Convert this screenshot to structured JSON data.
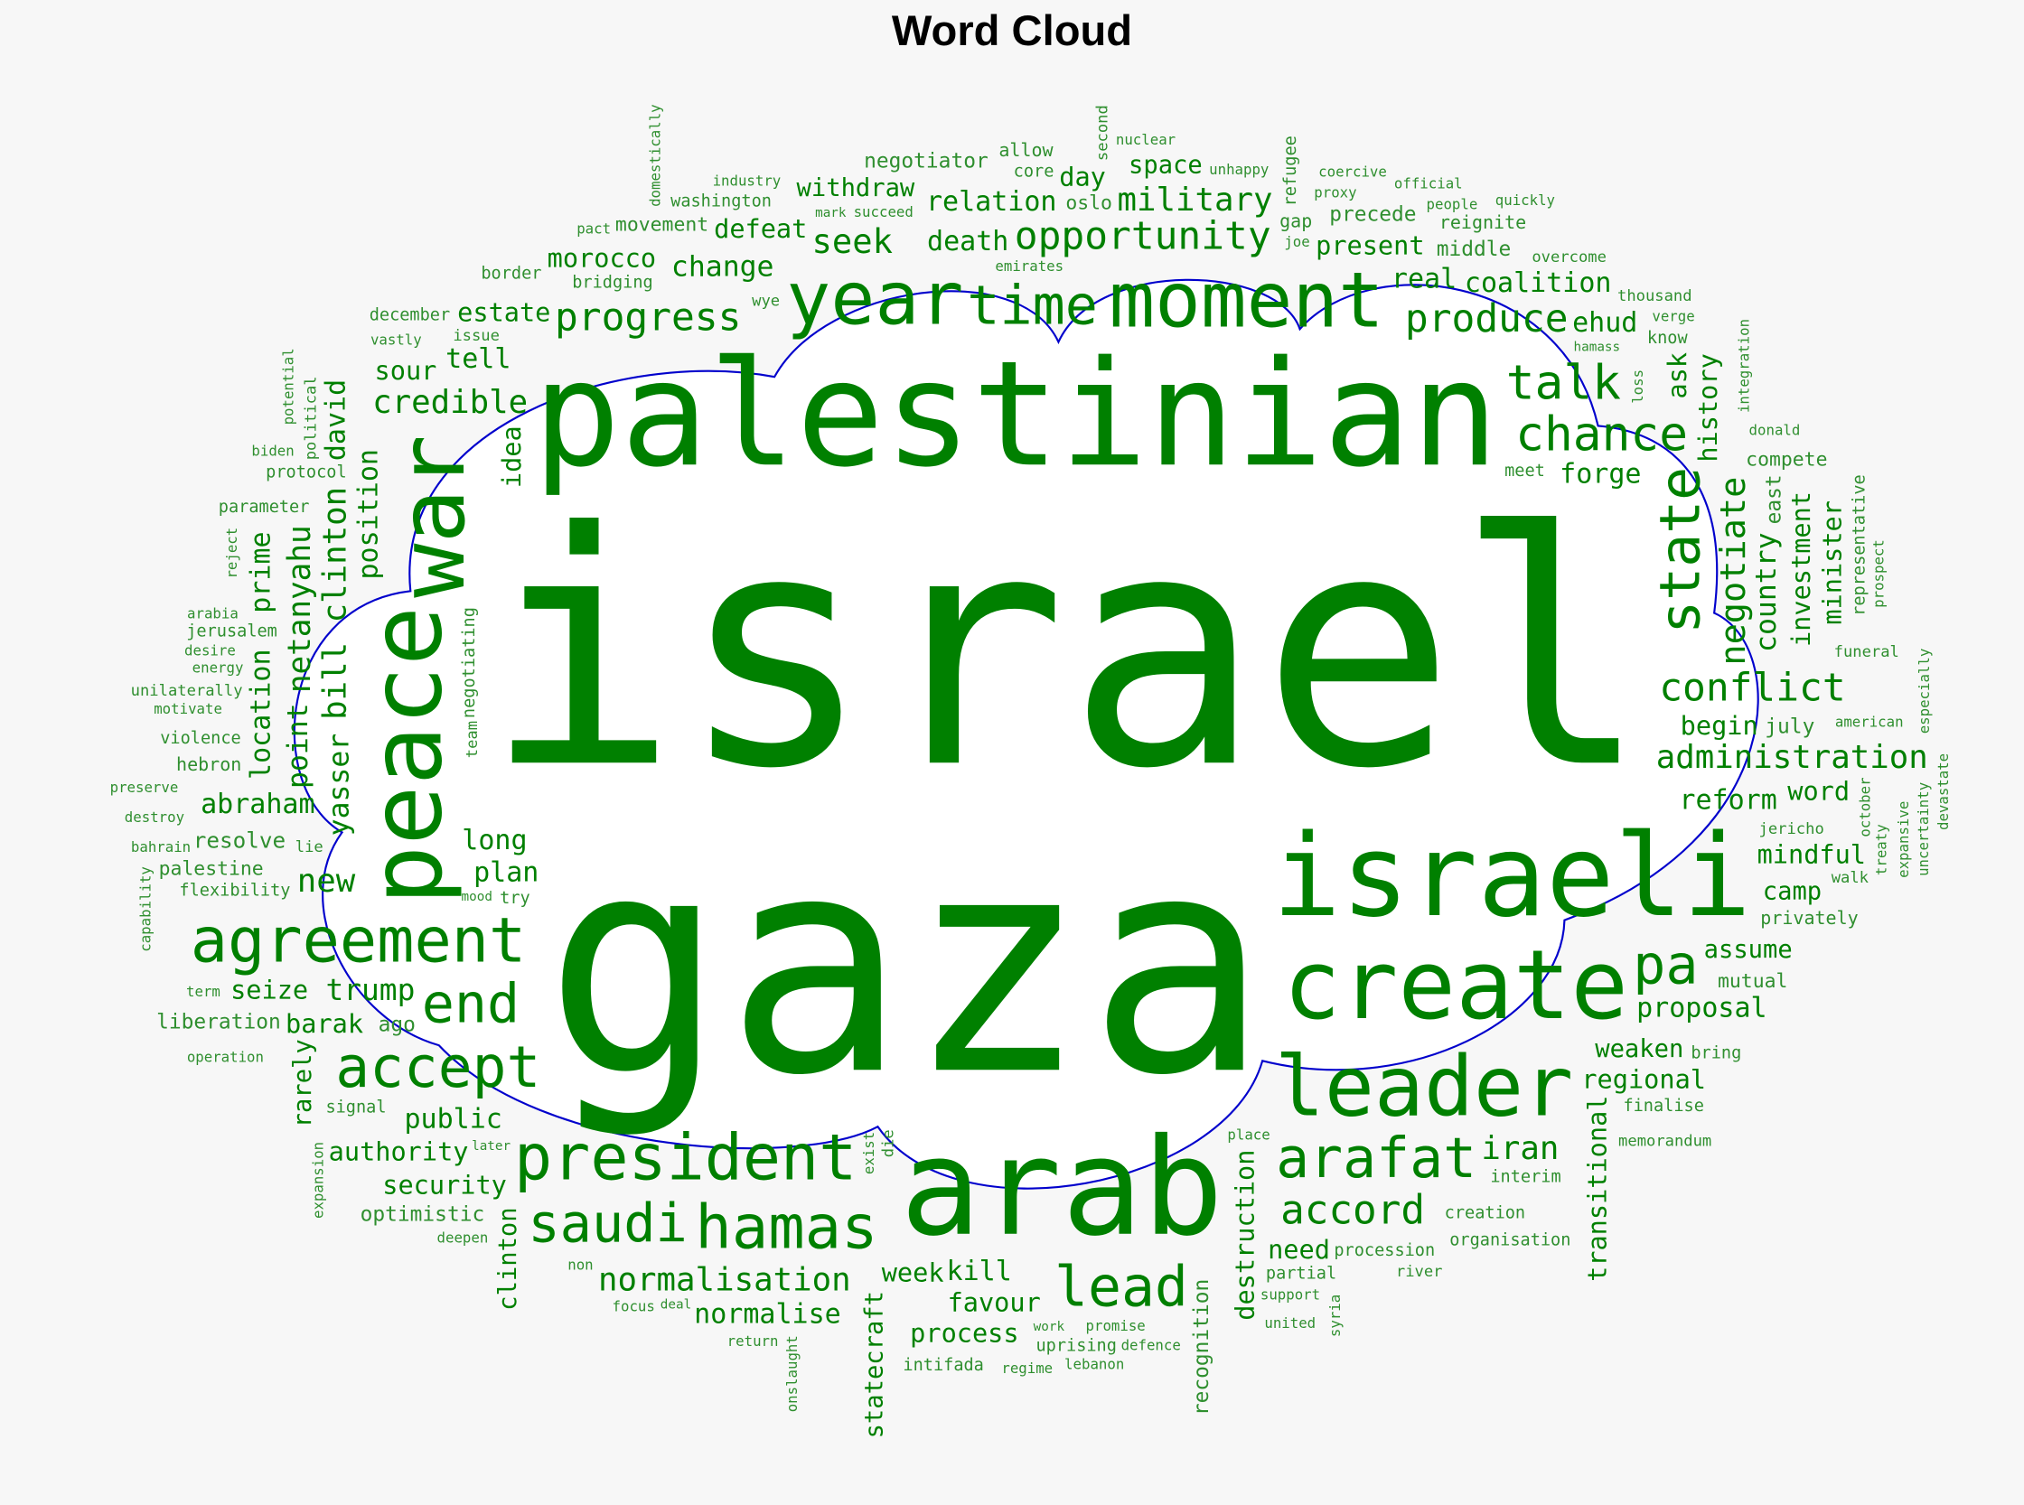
{
  "chart_data": {
    "type": "wordcloud",
    "title": "Word Cloud",
    "colors": {
      "word": "#008000",
      "word_small": "#2f8f2f",
      "outline": "#0000cc",
      "background": "#f7f7f7",
      "cloud_fill": "#ffffff"
    },
    "words": [
      "israel",
      "gaza",
      "palestinian",
      "israeli",
      "arab",
      "create",
      "leader",
      "moment",
      "agreement",
      "president",
      "year",
      "arafat",
      "pa",
      "accept",
      "hamas",
      "saudi",
      "lead",
      "end",
      "time",
      "chance",
      "accord",
      "talk",
      "produce",
      "conflict",
      "opportunity",
      "progress",
      "military",
      "withdraw",
      "space",
      "death",
      "negotiator",
      "present",
      "real",
      "coalition",
      "middle",
      "ehud",
      "reignite",
      "know",
      "thousand",
      "overcome",
      "people",
      "proxy",
      "coercive",
      "emirates",
      "unhappy",
      "mark",
      "succeed",
      "official",
      "quickly",
      "nuclear",
      "allow",
      "joe",
      "gap",
      "movement",
      "pact",
      "issue",
      "bridging",
      "sour",
      "estate",
      "change",
      "seek",
      "defeat",
      "oslo",
      "parameter",
      "december",
      "industry",
      "biden",
      "wye",
      "core",
      "verge",
      "meet",
      "compete",
      "day",
      "precede",
      "donald",
      "credible",
      "morocco",
      "protocol",
      "border",
      "relation",
      "vastly",
      "forge",
      "american",
      "hamass",
      "jerusalem",
      "abraham",
      "unilaterally",
      "desire",
      "washington",
      "july",
      "funeral",
      "reform",
      "begin",
      "word",
      "tell",
      "camp",
      "motivate",
      "energy",
      "arabia",
      "preserve",
      "lie",
      "creation",
      "administration",
      "proposal",
      "regional",
      "flexibility",
      "resolve",
      "operation",
      "procession",
      "try",
      "long",
      "destroy",
      "palestine",
      "hebron",
      "partial",
      "jericho",
      "mutual",
      "privately",
      "mindful",
      "iran",
      "violence",
      "term",
      "walk",
      "bahrain",
      "new",
      "barak",
      "plan",
      "non",
      "weaken",
      "finalise",
      "assume",
      "united",
      "uprising",
      "later",
      "liberation",
      "seize",
      "trump",
      "bring",
      "intifada",
      "interim",
      "organisation",
      "memorandum",
      "mood",
      "ago",
      "authority",
      "deepen",
      "promise",
      "signal",
      "focus",
      "return",
      "deal",
      "public",
      "security",
      "need",
      "lebanon",
      "regime",
      "support",
      "river",
      "optimistic",
      "normalisation",
      "favour",
      "defence",
      "normalise",
      "process",
      "place",
      "kill",
      "work",
      "week",
      "peace",
      "war",
      "state",
      "negotiate",
      "investment",
      "minister",
      "history",
      "east",
      "loss",
      "integration",
      "representative",
      "prospect",
      "country",
      "ask",
      "bill clinton",
      "position",
      "david",
      "potential",
      "reject",
      "negotiating",
      "netanyahu",
      "idea",
      "point",
      "team",
      "location",
      "yasser",
      "capability",
      "domestically",
      "second",
      "refugee",
      "prime",
      "political",
      "statecraft",
      "clinton",
      "rarely",
      "expansion",
      "destruction",
      "transitional",
      "recognition",
      "syria",
      "die",
      "onslaught",
      "exist",
      "october",
      "treaty",
      "expansive",
      "uncertainty",
      "devastate",
      "especially"
    ]
  }
}
